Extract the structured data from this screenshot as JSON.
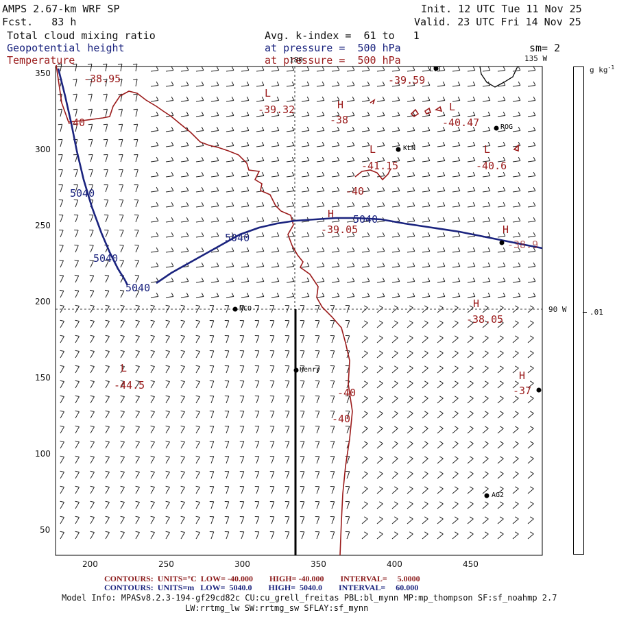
{
  "header": {
    "model_title": "AMPS 2.67-km WRF SP",
    "forecast": "Fcst.   83 h",
    "init": "Init. 12 UTC Tue 11 Nov 25",
    "valid": "Valid. 23 UTC Fri 14 Nov 25",
    "field1": "Total cloud mixing ratio",
    "field2": "Geopotential height",
    "field3": "Temperature",
    "avg": "Avg. k-index =  61 to   1",
    "pressure1": "at pressure =  500 hPa",
    "pressure2": "at pressure =  500 hPa",
    "smoothing": "sm= 2"
  },
  "map": {
    "lon_labels": {
      "top": "180",
      "top_right": "135 W",
      "right": "90 W"
    },
    "x_ticks": [
      "200",
      "250",
      "300",
      "350",
      "400",
      "450"
    ],
    "y_ticks": [
      "350",
      "300",
      "250",
      "200",
      "150",
      "100",
      "50"
    ],
    "stations": [
      {
        "name": "NCO"
      },
      {
        "name": "Henry"
      },
      {
        "name": "KLN"
      },
      {
        "name": "ROG"
      },
      {
        "name": "LVT"
      },
      {
        "name": "AG2"
      }
    ],
    "temperature_labels": [
      {
        "text": "-38.95"
      },
      {
        "text": "L"
      },
      {
        "text": "-39.32"
      },
      {
        "text": "H"
      },
      {
        "text": "-38"
      },
      {
        "text": "-39.59"
      },
      {
        "text": "L"
      },
      {
        "text": "-40.47"
      },
      {
        "text": "-40"
      },
      {
        "text": "L"
      },
      {
        "text": "-41.15"
      },
      {
        "text": "L"
      },
      {
        "text": "-40.6"
      },
      {
        "text": "-40"
      },
      {
        "text": "H"
      },
      {
        "text": "-39.05"
      },
      {
        "text": "H"
      },
      {
        "text": "-38.05"
      },
      {
        "text": "L"
      },
      {
        "text": "-44.5"
      },
      {
        "text": "-40"
      },
      {
        "text": "-40"
      },
      {
        "text": "H"
      },
      {
        "text": "-37"
      },
      {
        "text": "H"
      },
      {
        "text": "-38.9"
      }
    ],
    "height_labels": [
      {
        "text": "5040"
      },
      {
        "text": "5040"
      },
      {
        "text": "5040"
      },
      {
        "text": "5040"
      },
      {
        "text": "5040"
      }
    ]
  },
  "colorbar": {
    "units": "g kg",
    "units_exp": "-1",
    "tick": ".01"
  },
  "footer": {
    "temp_contours": "CONTOURS:  UNITS=°C  LOW= -40.000        HIGH= -40.000        INTERVAL=     5.0000",
    "height_contours": "CONTOURS:  UNITS=m   LOW=  5040.0        HIGH=  5040.0        INTERVAL=     60.000",
    "model_info_1": "Model Info: MPASv8.2.3-194-gf29cd82c CU:cu_grell_freitas PBL:bl_mynn MP:mp_thompson SF:sf_noahmp 2.7",
    "model_info_2": "LW:rrtmg_lw SW:rrtmg_sw SFLAY:sf_mynn"
  },
  "colors": {
    "height_contour": "#1a237e",
    "temperature_contour": "#9a1a1a"
  }
}
